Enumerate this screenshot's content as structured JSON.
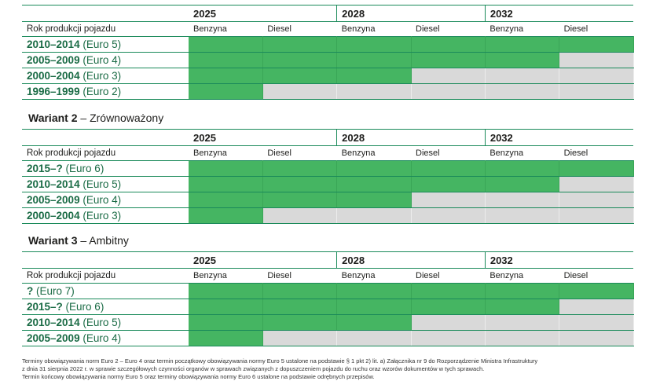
{
  "variants": [
    {
      "name": "",
      "suffix": "",
      "years": [
        "2025",
        "2028",
        "2032"
      ],
      "fuels": [
        "Benzyna",
        "Diesel"
      ],
      "row_header": "Rok produkcji pojazdu",
      "rows": [
        {
          "years": "2010–2014",
          "norm": " (Euro 5)",
          "allowed": [
            true,
            true,
            true,
            true,
            true,
            true
          ]
        },
        {
          "years": "2005–2009",
          "norm": " (Euro 4)",
          "allowed": [
            true,
            true,
            true,
            true,
            true,
            false
          ]
        },
        {
          "years": "2000–2004",
          "norm": " (Euro 3)",
          "allowed": [
            true,
            true,
            true,
            false,
            false,
            false
          ]
        },
        {
          "years": "1996–1999",
          "norm": " (Euro 2)",
          "allowed": [
            true,
            false,
            false,
            false,
            false,
            false
          ]
        }
      ]
    },
    {
      "name": "Wariant 2",
      "suffix": " – Zrównoważony",
      "years": [
        "2025",
        "2028",
        "2032"
      ],
      "fuels": [
        "Benzyna",
        "Diesel"
      ],
      "row_header": "Rok produkcji pojazdu",
      "rows": [
        {
          "years": "2015–?",
          "norm": " (Euro 6)",
          "allowed": [
            true,
            true,
            true,
            true,
            true,
            true
          ]
        },
        {
          "years": "2010–2014",
          "norm": " (Euro 5)",
          "allowed": [
            true,
            true,
            true,
            true,
            true,
            false
          ]
        },
        {
          "years": "2005–2009",
          "norm": " (Euro 4)",
          "allowed": [
            true,
            true,
            true,
            false,
            false,
            false
          ]
        },
        {
          "years": "2000–2004",
          "norm": " (Euro 3)",
          "allowed": [
            true,
            false,
            false,
            false,
            false,
            false
          ]
        }
      ]
    },
    {
      "name": "Wariant 3",
      "suffix": " – Ambitny",
      "years": [
        "2025",
        "2028",
        "2032"
      ],
      "fuels": [
        "Benzyna",
        "Diesel"
      ],
      "row_header": "Rok produkcji pojazdu",
      "rows": [
        {
          "years": "?",
          "norm": " (Euro 7)",
          "allowed": [
            true,
            true,
            true,
            true,
            true,
            true
          ]
        },
        {
          "years": "2015–?",
          "norm": " (Euro 6)",
          "allowed": [
            true,
            true,
            true,
            true,
            true,
            false
          ]
        },
        {
          "years": "2010–2014",
          "norm": " (Euro 5)",
          "allowed": [
            true,
            true,
            true,
            false,
            false,
            false
          ]
        },
        {
          "years": "2005–2009",
          "norm": " (Euro 4)",
          "allowed": [
            true,
            false,
            false,
            false,
            false,
            false
          ]
        }
      ]
    }
  ],
  "colors": {
    "allowed": "#45b562",
    "not_allowed": "#d9d9d9",
    "accent": "#1a8a5a"
  },
  "footnote": {
    "line1": "Terminy obowiązywania norm Euro 2 – Euro 4 oraz termin początkowy obowiązywania normy Euro 5 ustalone na podstawie § 1 pkt 2) lit. a) Załącznika nr 9 do Rozporządzenie Ministra Infrastruktury",
    "line2": "z dnia 31 sierpnia 2022 r. w sprawie szczegółowych czynności organów w sprawach związanych z dopuszczeniem pojazdu do ruchu oraz wzorów dokumentów w tych sprawach.",
    "line3": "Termin końcowy obowiązywania normy Euro 5 oraz terminy obowiązywania normy Euro 6 ustalone na podstawie odrębnych przepisów."
  }
}
